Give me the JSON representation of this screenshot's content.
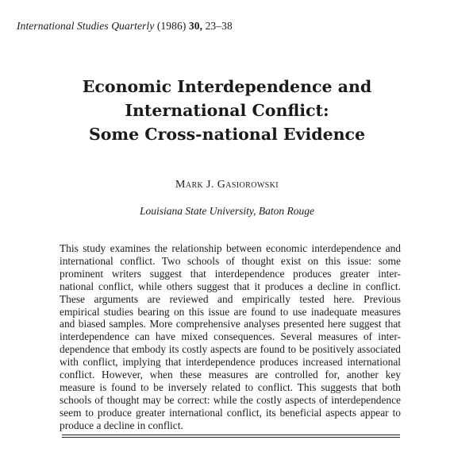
{
  "header": {
    "journal_name": "International Studies Quarterly",
    "journal_year": "(1986)",
    "journal_volume": "30,",
    "journal_pages": "23–38"
  },
  "title_lines": [
    "Economic Interdependence and",
    "International Conflict:",
    "Some Cross-national Evidence"
  ],
  "author": "Mark J. Gasiorowski",
  "affiliation": "Louisiana State University, Baton Rouge",
  "abstract_lines": [
    "This study examines the relationship between economic interdependence and",
    "international conflict. Two schools of thought exist on this issue: some",
    "prominent writers suggest that interdependence produces greater inter-",
    "national conflict, while others suggest that it produces a decline in conflict.",
    "These arguments are reviewed and empirically tested here. Previous",
    "empirical studies bearing on this issue are found to use inadequate measures",
    "and biased samples. More comprehensive analyses presented here suggest that",
    "interdependence can have mixed consequences. Several measures of inter-",
    "dependence that embody its costly aspects are found to be positively associated",
    "with conflict, implying that interdependence produces increased international",
    "conflict. However, when these measures are controlled for, another key",
    "measure is found to be inversely related to conflict. This suggests that both",
    "schools of thought may be correct: while the costly aspects of interdependence",
    "seem to produce greater international conflict, its beneficial aspects appear to",
    "produce a decline in conflict."
  ]
}
